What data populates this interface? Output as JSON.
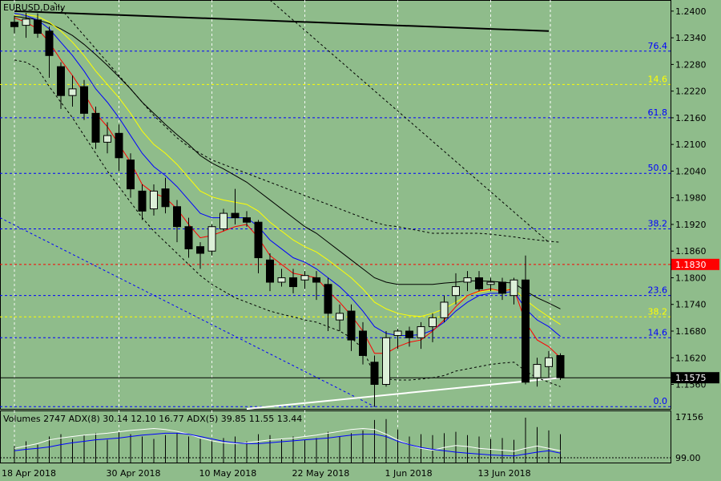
{
  "chart_title": "EURUSD,Daily",
  "indicator_label": "Volumes 2747 ADX(8) 30.14 12.10 16.77 ADX(5) 39.85 11.55 13.44",
  "colors": {
    "background": "#8fbc8b",
    "bull_candle": "#dcefd8",
    "bear_candle": "#000000",
    "ma_red": "#ff0000",
    "ma_blue": "#0000ff",
    "ma_yellow": "#ffff00",
    "ma_black": "#000000",
    "fib_blue": "#0000ff",
    "fib_yellow": "#ffff00",
    "resistance_red": "#ff0000",
    "price_tag_red": "#ff0000",
    "trend_white": "#ffffff"
  },
  "price_labels": {
    "resistance": "1.1830",
    "current": "1.1575"
  },
  "chart_data": {
    "type": "candlestick",
    "symbol": "EURUSD",
    "timeframe": "Daily",
    "y_ticks": [
      1.24,
      1.234,
      1.228,
      1.222,
      1.216,
      1.21,
      1.204,
      1.198,
      1.192,
      1.186,
      1.18,
      1.174,
      1.168,
      1.162,
      1.156
    ],
    "y_tick_labels": [
      "1.2400",
      "1.2340",
      "1.2280",
      "1.2220",
      "1.2160",
      "1.2100",
      "1.2040",
      "1.1980",
      "1.1920",
      "1.1860",
      "1.1800",
      "1.1740",
      "1.1680",
      "1.1620",
      "1.1560"
    ],
    "ylim": [
      1.1505,
      1.2425
    ],
    "x_labels": [
      {
        "label": "18 Apr 2018",
        "index": 0
      },
      {
        "label": "30 Apr 2018",
        "index": 9
      },
      {
        "label": "10 May 2018",
        "index": 17
      },
      {
        "label": "22 May 2018",
        "index": 25
      },
      {
        "label": "1 Jun 2018",
        "index": 33
      },
      {
        "label": "13 Jun 2018",
        "index": 41
      }
    ],
    "candles": [
      {
        "o": 1.2375,
        "h": 1.239,
        "l": 1.235,
        "c": 1.2365
      },
      {
        "o": 1.2368,
        "h": 1.2396,
        "l": 1.234,
        "c": 1.2382
      },
      {
        "o": 1.238,
        "h": 1.2395,
        "l": 1.234,
        "c": 1.235
      },
      {
        "o": 1.2355,
        "h": 1.2365,
        "l": 1.225,
        "c": 1.23
      },
      {
        "o": 1.2275,
        "h": 1.2285,
        "l": 1.218,
        "c": 1.221
      },
      {
        "o": 1.221,
        "h": 1.2255,
        "l": 1.2185,
        "c": 1.2225
      },
      {
        "o": 1.223,
        "h": 1.2245,
        "l": 1.2155,
        "c": 1.217
      },
      {
        "o": 1.217,
        "h": 1.2185,
        "l": 1.209,
        "c": 1.2105
      },
      {
        "o": 1.2105,
        "h": 1.215,
        "l": 1.208,
        "c": 1.212
      },
      {
        "o": 1.2125,
        "h": 1.2145,
        "l": 1.204,
        "c": 1.207
      },
      {
        "o": 1.2065,
        "h": 1.208,
        "l": 1.198,
        "c": 1.2
      },
      {
        "o": 1.1995,
        "h": 1.201,
        "l": 1.193,
        "c": 1.195
      },
      {
        "o": 1.1955,
        "h": 1.201,
        "l": 1.194,
        "c": 1.1995
      },
      {
        "o": 1.2,
        "h": 1.2025,
        "l": 1.1945,
        "c": 1.196
      },
      {
        "o": 1.196,
        "h": 1.1975,
        "l": 1.188,
        "c": 1.1915
      },
      {
        "o": 1.1915,
        "h": 1.1935,
        "l": 1.1845,
        "c": 1.1865
      },
      {
        "o": 1.187,
        "h": 1.188,
        "l": 1.182,
        "c": 1.1855
      },
      {
        "o": 1.186,
        "h": 1.192,
        "l": 1.185,
        "c": 1.1915
      },
      {
        "o": 1.191,
        "h": 1.1955,
        "l": 1.1905,
        "c": 1.1945
      },
      {
        "o": 1.1945,
        "h": 1.2,
        "l": 1.192,
        "c": 1.1935
      },
      {
        "o": 1.1935,
        "h": 1.195,
        "l": 1.1915,
        "c": 1.1925
      },
      {
        "o": 1.1925,
        "h": 1.193,
        "l": 1.181,
        "c": 1.1845
      },
      {
        "o": 1.184,
        "h": 1.1855,
        "l": 1.177,
        "c": 1.179
      },
      {
        "o": 1.179,
        "h": 1.182,
        "l": 1.178,
        "c": 1.18
      },
      {
        "o": 1.18,
        "h": 1.182,
        "l": 1.1765,
        "c": 1.178
      },
      {
        "o": 1.1795,
        "h": 1.1815,
        "l": 1.1775,
        "c": 1.1805
      },
      {
        "o": 1.18,
        "h": 1.1815,
        "l": 1.175,
        "c": 1.179
      },
      {
        "o": 1.1785,
        "h": 1.18,
        "l": 1.168,
        "c": 1.172
      },
      {
        "o": 1.1705,
        "h": 1.174,
        "l": 1.168,
        "c": 1.172
      },
      {
        "o": 1.1725,
        "h": 1.174,
        "l": 1.1635,
        "c": 1.166
      },
      {
        "o": 1.168,
        "h": 1.17,
        "l": 1.1605,
        "c": 1.1625
      },
      {
        "o": 1.161,
        "h": 1.1625,
        "l": 1.151,
        "c": 1.156
      },
      {
        "o": 1.156,
        "h": 1.168,
        "l": 1.1555,
        "c": 1.1665
      },
      {
        "o": 1.167,
        "h": 1.1685,
        "l": 1.164,
        "c": 1.168
      },
      {
        "o": 1.168,
        "h": 1.169,
        "l": 1.1645,
        "c": 1.1665
      },
      {
        "o": 1.1665,
        "h": 1.17,
        "l": 1.164,
        "c": 1.169
      },
      {
        "o": 1.169,
        "h": 1.172,
        "l": 1.1655,
        "c": 1.171
      },
      {
        "o": 1.171,
        "h": 1.176,
        "l": 1.17,
        "c": 1.1745
      },
      {
        "o": 1.176,
        "h": 1.181,
        "l": 1.174,
        "c": 1.178
      },
      {
        "o": 1.179,
        "h": 1.1815,
        "l": 1.177,
        "c": 1.18
      },
      {
        "o": 1.18,
        "h": 1.1815,
        "l": 1.177,
        "c": 1.1775
      },
      {
        "o": 1.1785,
        "h": 1.18,
        "l": 1.177,
        "c": 1.179
      },
      {
        "o": 1.179,
        "h": 1.18,
        "l": 1.175,
        "c": 1.1765
      },
      {
        "o": 1.176,
        "h": 1.18,
        "l": 1.174,
        "c": 1.1795
      },
      {
        "o": 1.1795,
        "h": 1.185,
        "l": 1.156,
        "c": 1.1565
      },
      {
        "o": 1.1575,
        "h": 1.162,
        "l": 1.1555,
        "c": 1.1605
      },
      {
        "o": 1.16,
        "h": 1.1635,
        "l": 1.1575,
        "c": 1.162
      },
      {
        "o": 1.1625,
        "h": 1.163,
        "l": 1.157,
        "c": 1.1575
      }
    ],
    "moving_averages": {
      "red": [
        1.2385,
        1.2375,
        1.236,
        1.233,
        1.229,
        1.2255,
        1.2215,
        1.217,
        1.214,
        1.21,
        1.206,
        1.201,
        1.199,
        1.198,
        1.1955,
        1.192,
        1.189,
        1.1895,
        1.1905,
        1.1915,
        1.192,
        1.189,
        1.185,
        1.183,
        1.181,
        1.1805,
        1.18,
        1.177,
        1.1745,
        1.1715,
        1.168,
        1.163,
        1.163,
        1.1645,
        1.1655,
        1.166,
        1.168,
        1.1705,
        1.1735,
        1.176,
        1.177,
        1.1775,
        1.177,
        1.1775,
        1.17,
        1.166,
        1.1645,
        1.162
      ],
      "blue": [
        1.2395,
        1.239,
        1.238,
        1.236,
        1.233,
        1.23,
        1.2265,
        1.2225,
        1.2195,
        1.216,
        1.212,
        1.208,
        1.205,
        1.203,
        1.2005,
        1.1975,
        1.1945,
        1.1935,
        1.1935,
        1.1935,
        1.1935,
        1.1915,
        1.1885,
        1.1865,
        1.1845,
        1.1835,
        1.182,
        1.18,
        1.178,
        1.1755,
        1.1725,
        1.169,
        1.1675,
        1.167,
        1.167,
        1.1672,
        1.1682,
        1.17,
        1.1725,
        1.1745,
        1.176,
        1.1765,
        1.1765,
        1.177,
        1.173,
        1.1705,
        1.169,
        1.1668
      ],
      "yellow": [
        1.239,
        1.2392,
        1.2388,
        1.2375,
        1.2355,
        1.233,
        1.23,
        1.2265,
        1.2235,
        1.2205,
        1.217,
        1.213,
        1.21,
        1.208,
        1.2055,
        1.2025,
        1.1995,
        1.1982,
        1.1975,
        1.197,
        1.1965,
        1.195,
        1.1925,
        1.1905,
        1.1885,
        1.187,
        1.1858,
        1.184,
        1.182,
        1.18,
        1.1775,
        1.1745,
        1.173,
        1.172,
        1.1715,
        1.1713,
        1.172,
        1.173,
        1.1745,
        1.176,
        1.1768,
        1.1772,
        1.1772,
        1.1775,
        1.175,
        1.173,
        1.1712,
        1.1695
      ],
      "black": [
        1.2388,
        1.2385,
        1.238,
        1.2372,
        1.236,
        1.2345,
        1.2325,
        1.2302,
        1.2278,
        1.2252,
        1.2225,
        1.2195,
        1.217,
        1.2145,
        1.2122,
        1.21,
        1.2075,
        1.2058,
        1.2045,
        1.203,
        1.2015,
        1.1995,
        1.1975,
        1.1955,
        1.1935,
        1.1915,
        1.19,
        1.188,
        1.186,
        1.184,
        1.182,
        1.18,
        1.179,
        1.1785,
        1.1785,
        1.1785,
        1.1785,
        1.1788,
        1.179,
        1.1793,
        1.1793,
        1.1792,
        1.179,
        1.1788,
        1.177,
        1.1755,
        1.1743,
        1.173
      ]
    },
    "bands": {
      "upper": [
        1.2475,
        1.247,
        1.2455,
        1.243,
        1.2405,
        1.2375,
        1.2345,
        1.2315,
        1.2285,
        1.2255,
        1.2225,
        1.2195,
        1.2165,
        1.214,
        1.2115,
        1.2095,
        1.208,
        1.2065,
        1.2055,
        1.2045,
        1.2035,
        1.2025,
        1.2015,
        1.2005,
        1.1995,
        1.1985,
        1.1975,
        1.1965,
        1.1955,
        1.1945,
        1.1935,
        1.1925,
        1.1918,
        1.1915,
        1.191,
        1.1905,
        1.19,
        1.19,
        1.19,
        1.19,
        1.19,
        1.1898,
        1.1895,
        1.1892,
        1.1888,
        1.1885,
        1.1882,
        1.188
      ],
      "lower": [
        1.229,
        1.2285,
        1.227,
        1.223,
        1.2195,
        1.216,
        1.212,
        1.208,
        1.204,
        1.2005,
        1.197,
        1.1935,
        1.1905,
        1.188,
        1.1855,
        1.183,
        1.1805,
        1.1785,
        1.177,
        1.1755,
        1.1745,
        1.1735,
        1.1725,
        1.1718,
        1.1712,
        1.1705,
        1.17,
        1.169,
        1.168,
        1.1665,
        1.164,
        1.158,
        1.1572,
        1.157,
        1.157,
        1.1572,
        1.1575,
        1.158,
        1.159,
        1.1595,
        1.16,
        1.1605,
        1.1608,
        1.161,
        1.159,
        1.1575,
        1.1565,
        1.1555
      ]
    },
    "fibonacci_levels": [
      {
        "label": "76.4",
        "price": 1.231,
        "color": "blue"
      },
      {
        "label": "14.6",
        "price": 1.2235,
        "color": "yellow"
      },
      {
        "label": "61.8",
        "price": 1.216,
        "color": "blue"
      },
      {
        "label": "50.0",
        "price": 1.2035,
        "color": "blue"
      },
      {
        "label": "38.2",
        "price": 1.191,
        "color": "blue"
      },
      {
        "label": "23.6",
        "price": 1.176,
        "color": "blue"
      },
      {
        "label": "38.2",
        "price": 1.1712,
        "color": "yellow"
      },
      {
        "label": "14.6",
        "price": 1.1665,
        "color": "blue"
      },
      {
        "label": "0.0",
        "price": 1.151,
        "color": "blue"
      }
    ],
    "horizontal_lines": [
      {
        "name": "resistance",
        "price": 1.183,
        "color": "red",
        "style": "dashed"
      },
      {
        "name": "current",
        "price": 1.1575,
        "color": "black",
        "style": "solid"
      }
    ],
    "volume_panel": {
      "y_tick_labels": [
        "17156",
        "99.00"
      ],
      "volumes": [
        0.35,
        0.45,
        0.38,
        0.55,
        0.6,
        0.5,
        0.58,
        0.62,
        0.48,
        0.65,
        0.6,
        0.55,
        0.5,
        0.58,
        0.63,
        0.55,
        0.5,
        0.48,
        0.52,
        0.55,
        0.45,
        0.6,
        0.58,
        0.5,
        0.55,
        0.48,
        0.52,
        0.65,
        0.55,
        0.62,
        0.68,
        0.9,
        0.92,
        0.7,
        0.55,
        0.6,
        0.58,
        0.62,
        0.65,
        0.58,
        0.55,
        0.5,
        0.52,
        0.48,
        0.95,
        0.75,
        0.68,
        0.6
      ],
      "adx_blue": [
        0.25,
        0.28,
        0.3,
        0.33,
        0.38,
        0.42,
        0.45,
        0.48,
        0.5,
        0.52,
        0.55,
        0.58,
        0.6,
        0.62,
        0.62,
        0.6,
        0.55,
        0.5,
        0.45,
        0.42,
        0.4,
        0.4,
        0.42,
        0.44,
        0.46,
        0.48,
        0.5,
        0.52,
        0.55,
        0.58,
        0.6,
        0.6,
        0.55,
        0.45,
        0.38,
        0.32,
        0.28,
        0.25,
        0.22,
        0.2,
        0.18,
        0.16,
        0.15,
        0.14,
        0.18,
        0.22,
        0.25,
        0.2
      ],
      "adx_white": [
        0.3,
        0.35,
        0.4,
        0.48,
        0.52,
        0.55,
        0.58,
        0.6,
        0.62,
        0.65,
        0.68,
        0.7,
        0.72,
        0.7,
        0.66,
        0.6,
        0.52,
        0.46,
        0.42,
        0.4,
        0.42,
        0.45,
        0.48,
        0.5,
        0.52,
        0.55,
        0.58,
        0.62,
        0.66,
        0.7,
        0.72,
        0.7,
        0.6,
        0.48,
        0.38,
        0.3,
        0.26,
        0.32,
        0.36,
        0.34,
        0.3,
        0.28,
        0.26,
        0.24,
        0.3,
        0.35,
        0.3,
        0.25
      ]
    }
  }
}
